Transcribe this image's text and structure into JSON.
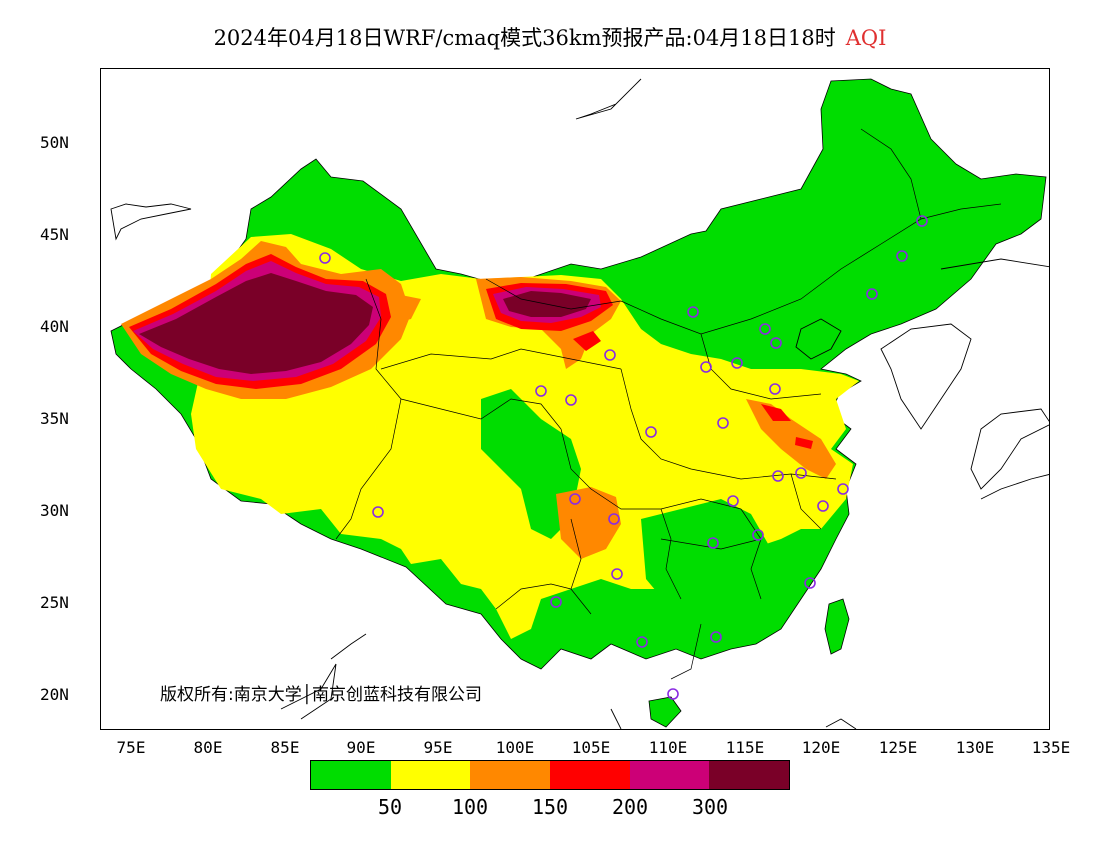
{
  "title": {
    "main": "2024年04月18日WRF/cmaq模式36km预报产品:04月18日18时",
    "variable": "AQI",
    "variable_color": "#e03030"
  },
  "axes": {
    "y_labels": [
      "50N",
      "45N",
      "40N",
      "35N",
      "30N",
      "25N",
      "20N"
    ],
    "x_labels": [
      "75E",
      "80E",
      "85E",
      "90E",
      "95E",
      "100E",
      "105E",
      "110E",
      "115E",
      "120E",
      "125E",
      "130E",
      "135E"
    ],
    "lon_range": [
      73,
      135
    ],
    "lat_range": [
      18,
      54
    ]
  },
  "copyright": "版权所有:南京大学│南京创蓝科技有限公司",
  "legend": {
    "colors": [
      "#00dd00",
      "#ffff00",
      "#ff8800",
      "#ff0000",
      "#cc0077",
      "#7a0028"
    ],
    "labels": [
      "50",
      "100",
      "150",
      "200",
      "300"
    ]
  },
  "map_colors": {
    "good": "#00dd00",
    "moderate": "#ffff00",
    "sensitive": "#ff8800",
    "unhealthy": "#ff0000",
    "very_unhealthy": "#cc0077",
    "hazardous": "#7a0028",
    "station_marker": "#8a2be2"
  }
}
